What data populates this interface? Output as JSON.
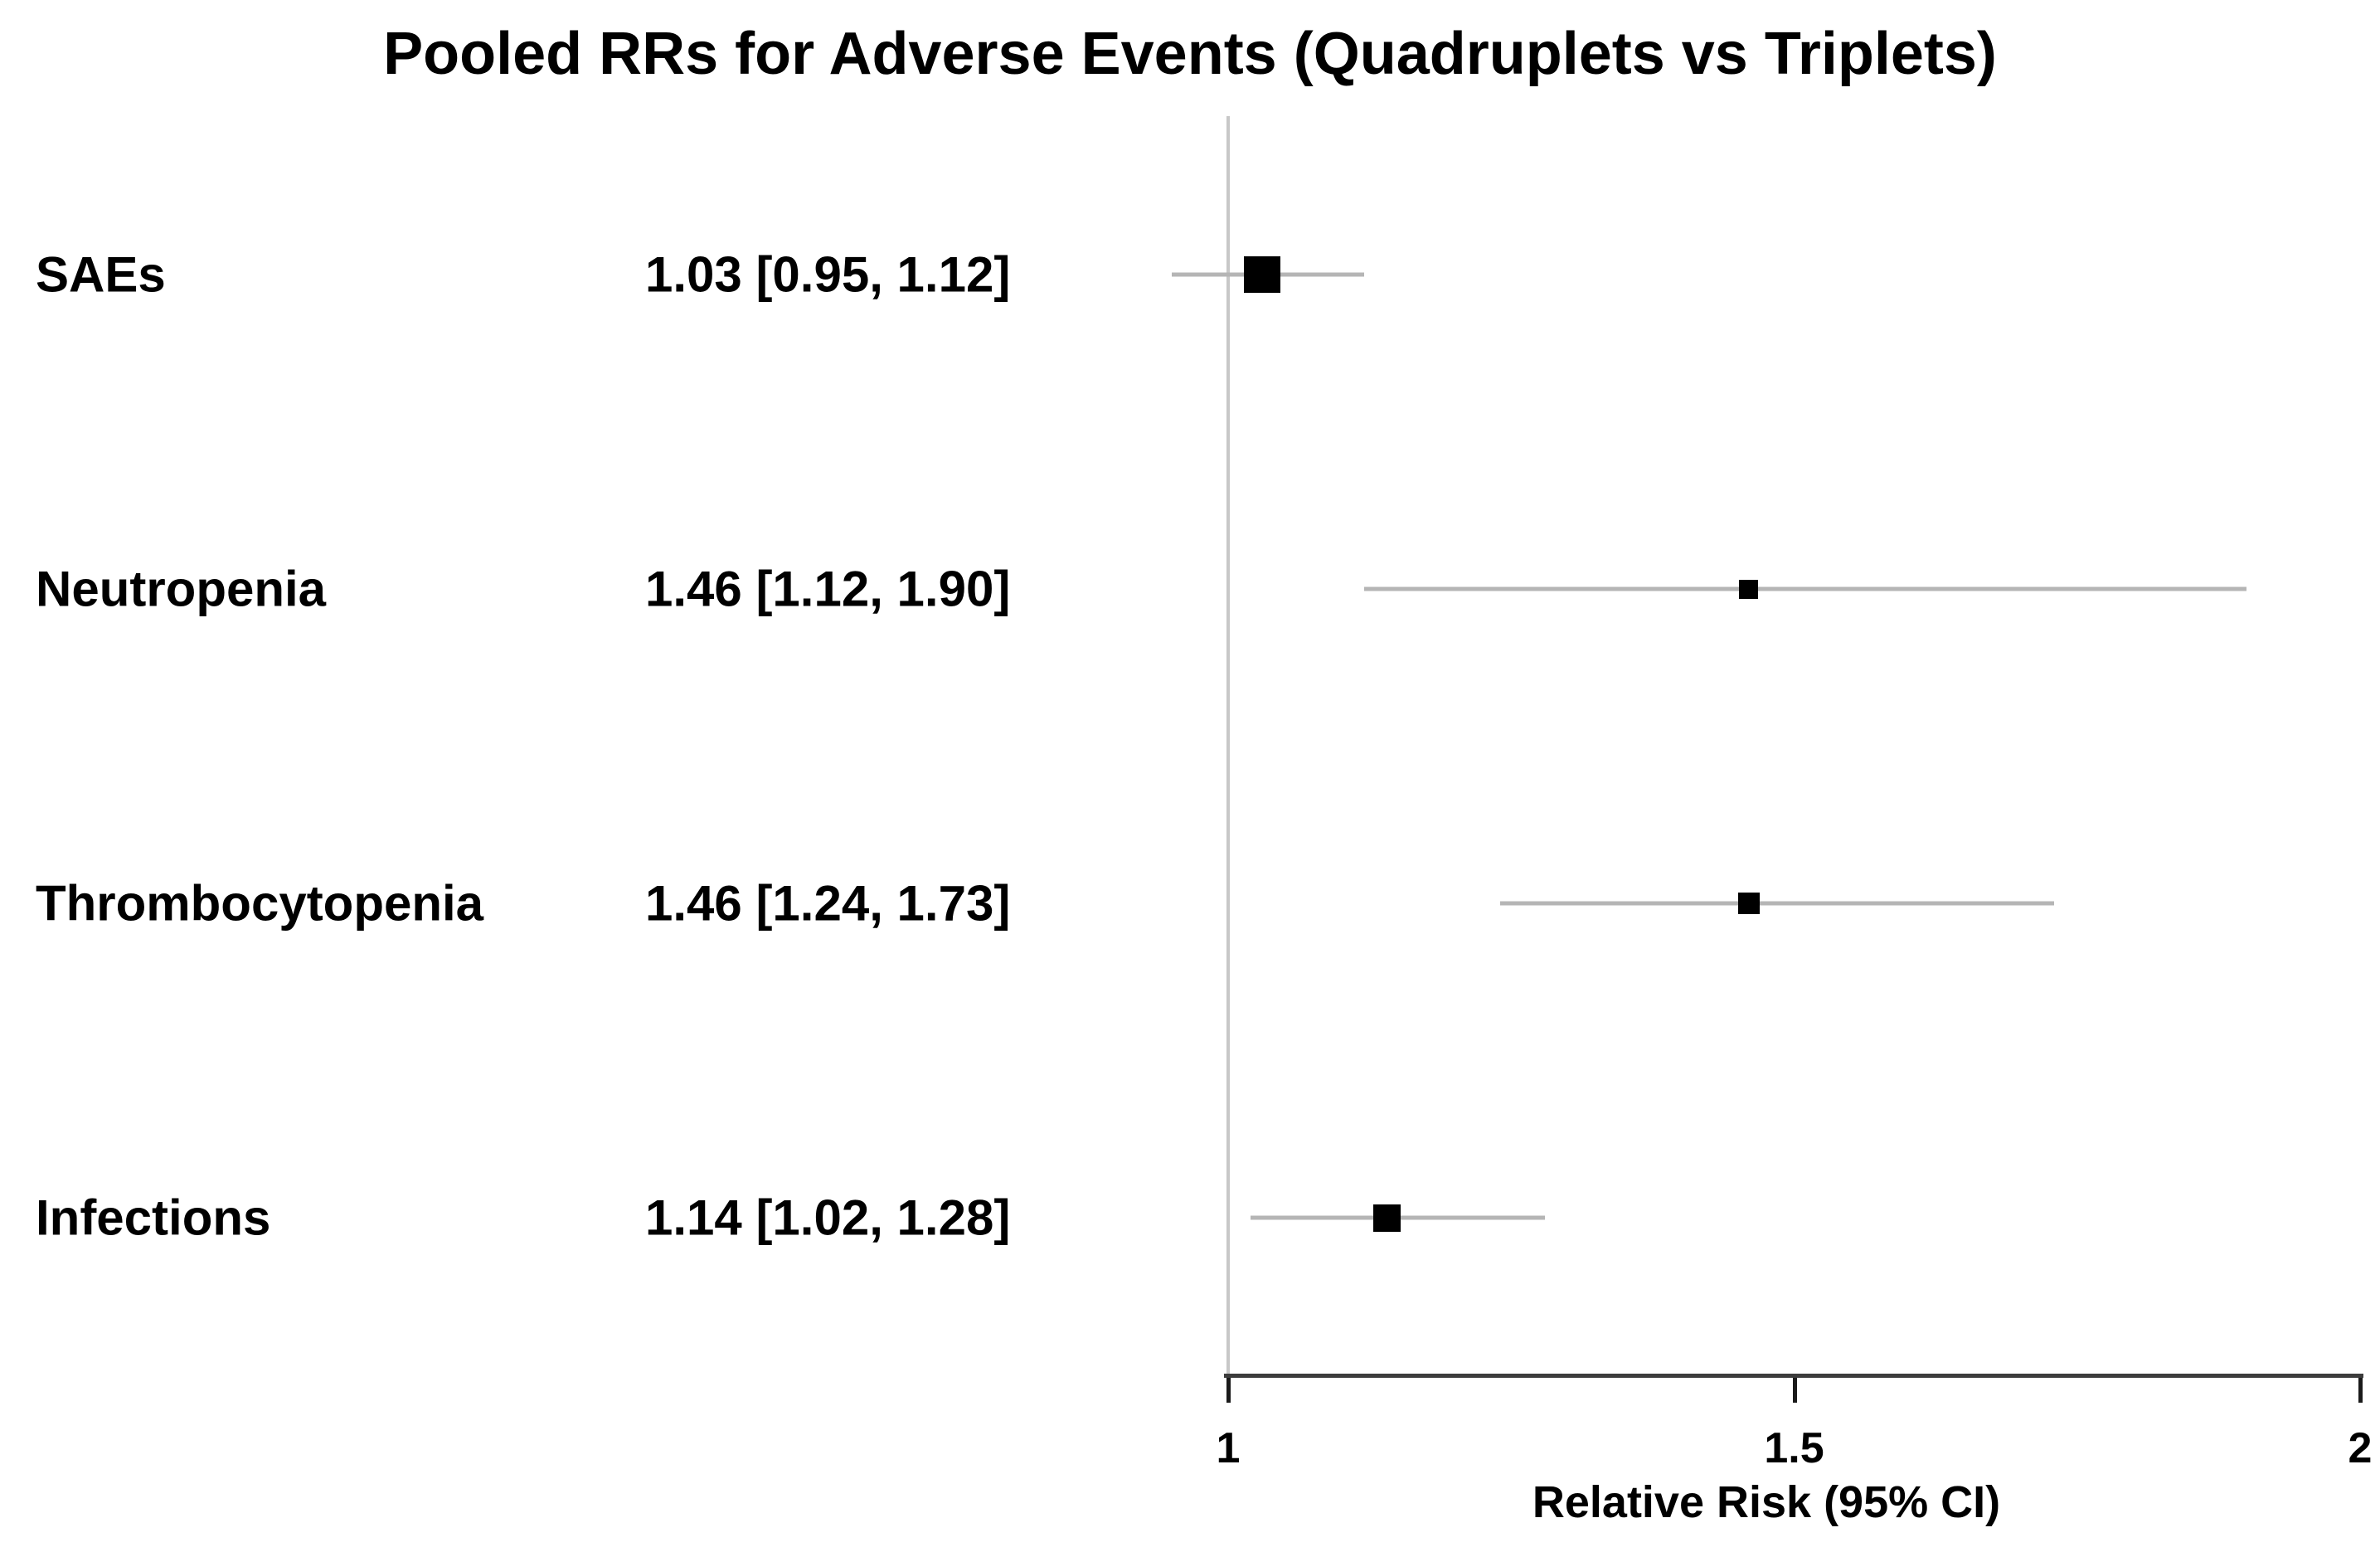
{
  "title": "Pooled RRs for Adverse Events (Quadruplets vs Triplets)",
  "colors": {
    "text": "#000000",
    "marker": "#000000",
    "ci_line": "#b5b5b5",
    "ref_line": "#c8c8c8",
    "axis_line": "#3c3c3c",
    "tick": "#1a1a1a"
  },
  "chart_data": {
    "type": "forest",
    "title": "Pooled RRs for Adverse Events (Quadruplets vs Triplets)",
    "xlabel": "Relative Risk (95% CI)",
    "x_axis_range": [
      1,
      2
    ],
    "x_ticks": [
      1,
      1.5,
      2
    ],
    "x_tick_labels": [
      "1",
      "1.5",
      "2"
    ],
    "reference_line_x": 1,
    "grid": "off",
    "legend": "none",
    "rows": [
      {
        "label": "SAEs",
        "estimate": 1.03,
        "ci_lower": 0.95,
        "ci_upper": 1.12,
        "estimate_text": "1.03 [0.95, 1.12]",
        "marker_size": 44
      },
      {
        "label": "Neutropenia",
        "estimate": 1.46,
        "ci_lower": 1.12,
        "ci_upper": 1.9,
        "estimate_text": "1.46 [1.12, 1.90]",
        "marker_size": 23
      },
      {
        "label": "Thrombocytopenia",
        "estimate": 1.46,
        "ci_lower": 1.24,
        "ci_upper": 1.73,
        "estimate_text": "1.46 [1.24, 1.73]",
        "marker_size": 26
      },
      {
        "label": "Infections",
        "estimate": 1.14,
        "ci_lower": 1.02,
        "ci_upper": 1.28,
        "estimate_text": "1.14 [1.02, 1.28]",
        "marker_size": 33
      }
    ]
  }
}
